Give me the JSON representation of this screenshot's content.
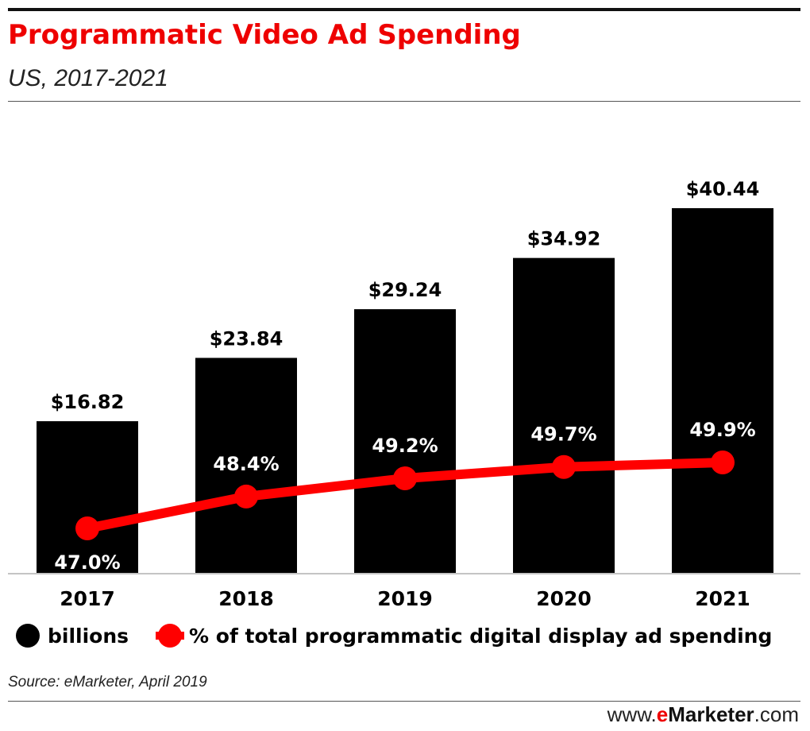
{
  "header": {
    "title": "Programmatic Video Ad Spending",
    "subtitle": "US, 2017-2021"
  },
  "chart_data": {
    "type": "bar",
    "title": "Programmatic Video Ad Spending",
    "subtitle": "US, 2017-2021",
    "categories": [
      "2017",
      "2018",
      "2019",
      "2020",
      "2021"
    ],
    "series": [
      {
        "name": "billions",
        "kind": "bar",
        "color": "#000000",
        "values": [
          16.82,
          23.84,
          29.24,
          34.92,
          40.44
        ],
        "labels": [
          "$16.82",
          "$23.84",
          "$29.24",
          "$34.92",
          "$40.44"
        ]
      },
      {
        "name": "% of total programmatic digital display ad spending",
        "kind": "line",
        "color": "#ff0000",
        "values": [
          47.0,
          48.4,
          49.2,
          49.7,
          49.9
        ],
        "labels": [
          "47.0%",
          "48.4%",
          "49.2%",
          "49.7%",
          "49.9%"
        ]
      }
    ],
    "legend_position": "bottom-left",
    "grid": false
  },
  "legend": {
    "items": [
      {
        "label": "billions",
        "color": "#000000"
      },
      {
        "label": "% of total programmatic digital display ad spending",
        "color": "#ff0000"
      }
    ]
  },
  "footer": {
    "source": "Source: eMarketer, April 2019",
    "brand_prefix": "www.",
    "brand_e": "e",
    "brand_name": "Marketer",
    "brand_suffix": ".com"
  }
}
